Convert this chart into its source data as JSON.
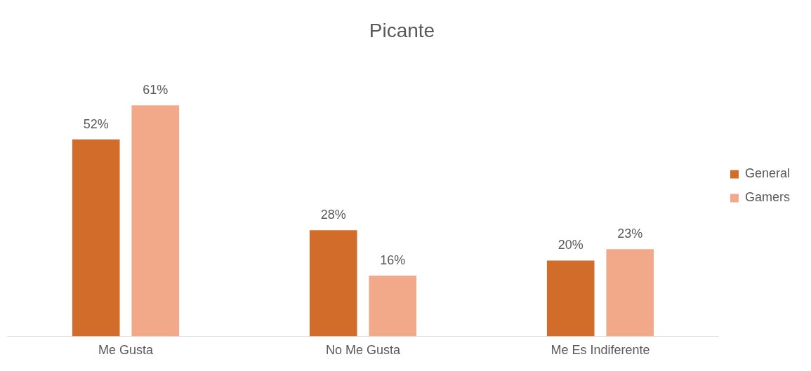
{
  "chart_data": {
    "type": "bar",
    "title": "Picante",
    "categories": [
      "Me Gusta",
      "No Me Gusta",
      "Me Es Indiferente"
    ],
    "series": [
      {
        "name": "General",
        "color": "#d26c2a",
        "values": [
          52,
          28,
          20
        ],
        "value_labels": [
          "52%",
          "28%",
          "20%"
        ]
      },
      {
        "name": "Gamers",
        "color": "#f1a98a",
        "values": [
          61,
          16,
          23
        ],
        "value_labels": [
          "61%",
          "16%",
          "23%"
        ]
      }
    ],
    "legend": "right",
    "grid": false
  }
}
